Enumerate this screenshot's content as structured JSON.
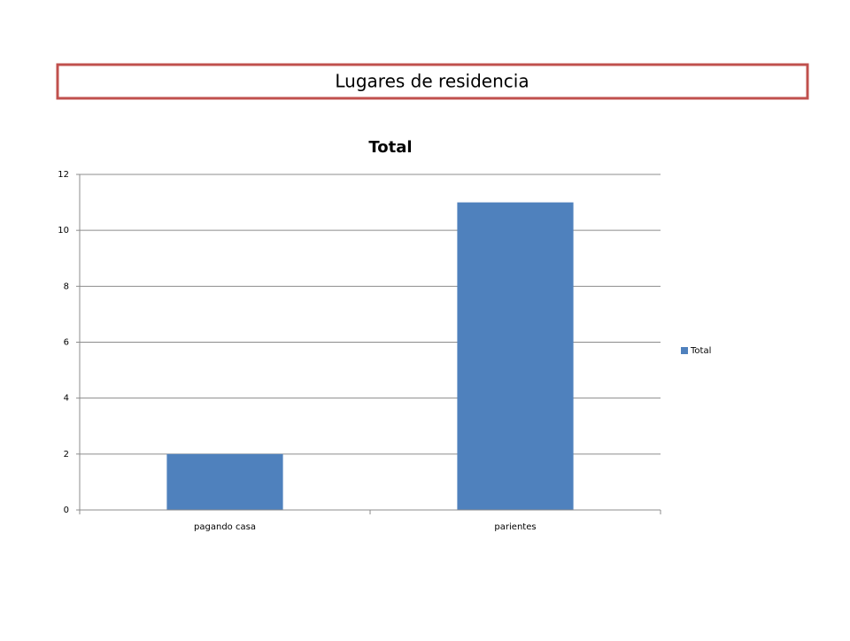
{
  "header": {
    "title": "Lugares de residencia"
  },
  "chart_data": {
    "type": "bar",
    "title": "Total",
    "categories": [
      "pagando casa",
      "parientes"
    ],
    "series": [
      {
        "name": "Total",
        "color": "#4f81bd",
        "values": [
          2,
          11
        ]
      }
    ],
    "ylim": [
      0,
      12
    ],
    "yticks": [
      0,
      2,
      4,
      6,
      8,
      10,
      12
    ],
    "grid": true,
    "legend": "right"
  }
}
